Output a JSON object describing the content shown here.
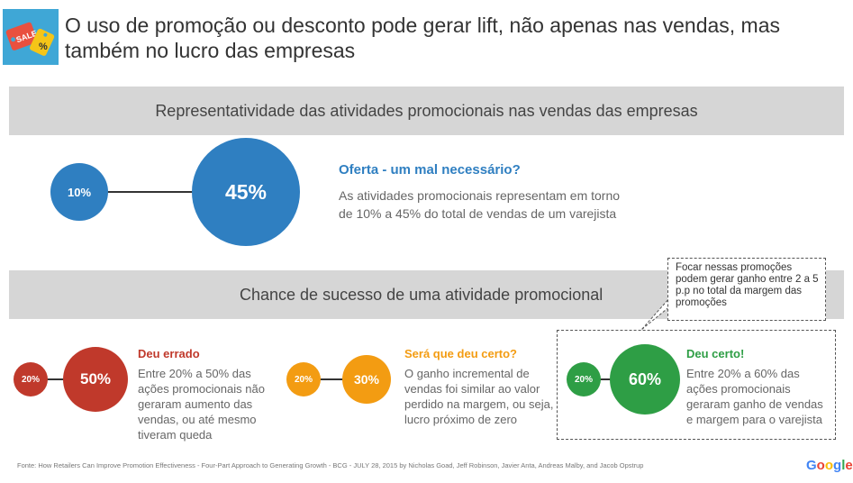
{
  "header": {
    "icon": "sale-tag-icon",
    "icon_label": "SALE",
    "icon_percent": "%",
    "title": "O uso de promoção ou desconto pode gerar lift, não apenas nas vendas, mas também no lucro das empresas"
  },
  "section1": {
    "title": "Representatividade das atividades promocionais nas vendas das empresas",
    "small_value": "10%",
    "large_value": "45%",
    "heading": "Oferta - um mal necessário?",
    "text": "As atividades promocionais representam em torno de 10% a 45% do total de vendas de um varejista",
    "color": "#2f7fc1"
  },
  "section2": {
    "title": "Chance de sucesso de uma atividade promocional",
    "callout": "Focar nessas promoções podem gerar ganho entre 2 a 5 p.p no total da margem das promoções",
    "groups": [
      {
        "small": "20%",
        "large": "50%",
        "heading": "Deu errado",
        "text": "Entre 20% a 50% das ações promocionais não geraram aumento das vendas, ou até mesmo tiveram queda",
        "color": "#c0392b"
      },
      {
        "small": "20%",
        "large": "30%",
        "heading": "Será que deu certo?",
        "text": "O ganho incremental de vendas foi similar ao valor perdido na margem, ou seja, lucro próximo de zero",
        "color": "#f39c12"
      },
      {
        "small": "20%",
        "large": "60%",
        "heading": "Deu certo!",
        "text": "Entre 20% a 60% das ações promocionais geraram ganho de vendas e margem para o varejista",
        "color": "#2e9e45"
      }
    ]
  },
  "footer": {
    "source": "Fonte: How Retailers Can Improve Promotion Effectiveness -  Four-Part Approach to Generating Growth - BCG - JULY 28, 2015 by Nicholas Goad, Jeff Robinson, Javier Anta, Andreas Malby, and Jacob Opstrup",
    "logo": "Google"
  }
}
